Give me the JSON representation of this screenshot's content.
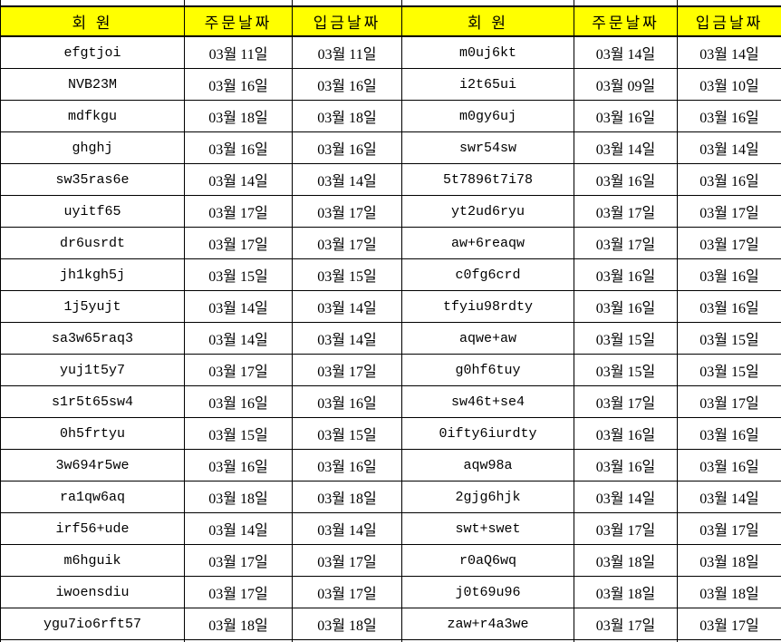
{
  "colors": {
    "header_bg": "#ffff00",
    "border": "#000000",
    "text": "#000000",
    "row_bg": "#ffffff"
  },
  "columns": {
    "member": "회 원",
    "order_date": "주문날짜",
    "deposit_date": "입금날짜"
  },
  "tables": [
    {
      "rows": [
        {
          "member": "efgtjoi",
          "order": "03월 11일",
          "deposit": "03월 11일"
        },
        {
          "member": "NVB23M",
          "order": "03월 16일",
          "deposit": "03월 16일"
        },
        {
          "member": "mdfkgu",
          "order": "03월 18일",
          "deposit": "03월 18일"
        },
        {
          "member": "ghghj",
          "order": "03월 16일",
          "deposit": "03월 16일"
        },
        {
          "member": "sw35ras6e",
          "order": "03월 14일",
          "deposit": "03월 14일"
        },
        {
          "member": "uyitf65",
          "order": "03월 17일",
          "deposit": "03월 17일"
        },
        {
          "member": "dr6usrdt",
          "order": "03월 17일",
          "deposit": "03월 17일"
        },
        {
          "member": "jh1kgh5j",
          "order": "03월 15일",
          "deposit": "03월 15일"
        },
        {
          "member": "1j5yujt",
          "order": "03월 14일",
          "deposit": "03월 14일"
        },
        {
          "member": "sa3w65raq3",
          "order": "03월 14일",
          "deposit": "03월 14일"
        },
        {
          "member": "yuj1t5y7",
          "order": "03월 17일",
          "deposit": "03월 17일"
        },
        {
          "member": "s1r5t65sw4",
          "order": "03월 16일",
          "deposit": "03월 16일"
        },
        {
          "member": "0h5frtyu",
          "order": "03월 15일",
          "deposit": "03월 15일"
        },
        {
          "member": "3w694r5we",
          "order": "03월 16일",
          "deposit": "03월 16일"
        },
        {
          "member": "ra1qw6aq",
          "order": "03월 18일",
          "deposit": "03월 18일"
        },
        {
          "member": "irf56+ude",
          "order": "03월 14일",
          "deposit": "03월 14일"
        },
        {
          "member": "m6hguik",
          "order": "03월 17일",
          "deposit": "03월 17일"
        },
        {
          "member": "iwoensdiu",
          "order": "03월 17일",
          "deposit": "03월 17일"
        },
        {
          "member": "ygu7io6rft57",
          "order": "03월 18일",
          "deposit": "03월 18일"
        }
      ]
    },
    {
      "rows": [
        {
          "member": "m0uj6kt",
          "order": "03월 14일",
          "deposit": "03월 14일"
        },
        {
          "member": "i2t65ui",
          "order": "03월 09일",
          "deposit": "03월 10일"
        },
        {
          "member": "m0gy6uj",
          "order": "03월 16일",
          "deposit": "03월 16일"
        },
        {
          "member": "swr54sw",
          "order": "03월 14일",
          "deposit": "03월 14일"
        },
        {
          "member": "5t7896t7i78",
          "order": "03월 16일",
          "deposit": "03월 16일"
        },
        {
          "member": "yt2ud6ryu",
          "order": "03월 17일",
          "deposit": "03월 17일"
        },
        {
          "member": "aw+6reaqw",
          "order": "03월 17일",
          "deposit": "03월 17일"
        },
        {
          "member": "c0fg6crd",
          "order": "03월 16일",
          "deposit": "03월 16일"
        },
        {
          "member": "tfyiu98rdty",
          "order": "03월 16일",
          "deposit": "03월 16일"
        },
        {
          "member": "aqwe+aw",
          "order": "03월 15일",
          "deposit": "03월 15일"
        },
        {
          "member": "g0hf6tuy",
          "order": "03월 15일",
          "deposit": "03월 15일"
        },
        {
          "member": "sw46t+se4",
          "order": "03월 17일",
          "deposit": "03월 17일"
        },
        {
          "member": "0ifty6iurdty",
          "order": "03월 16일",
          "deposit": "03월 16일"
        },
        {
          "member": "aqw98a",
          "order": "03월 16일",
          "deposit": "03월 16일"
        },
        {
          "member": "2gjg6hjk",
          "order": "03월 14일",
          "deposit": "03월 14일"
        },
        {
          "member": "swt+swet",
          "order": "03월 17일",
          "deposit": "03월 17일"
        },
        {
          "member": "r0aQ6wq",
          "order": "03월 18일",
          "deposit": "03월 18일"
        },
        {
          "member": "j0t69u96",
          "order": "03월 18일",
          "deposit": "03월 18일"
        },
        {
          "member": "zaw+r4a3we",
          "order": "03월 17일",
          "deposit": "03월 17일"
        }
      ]
    }
  ]
}
